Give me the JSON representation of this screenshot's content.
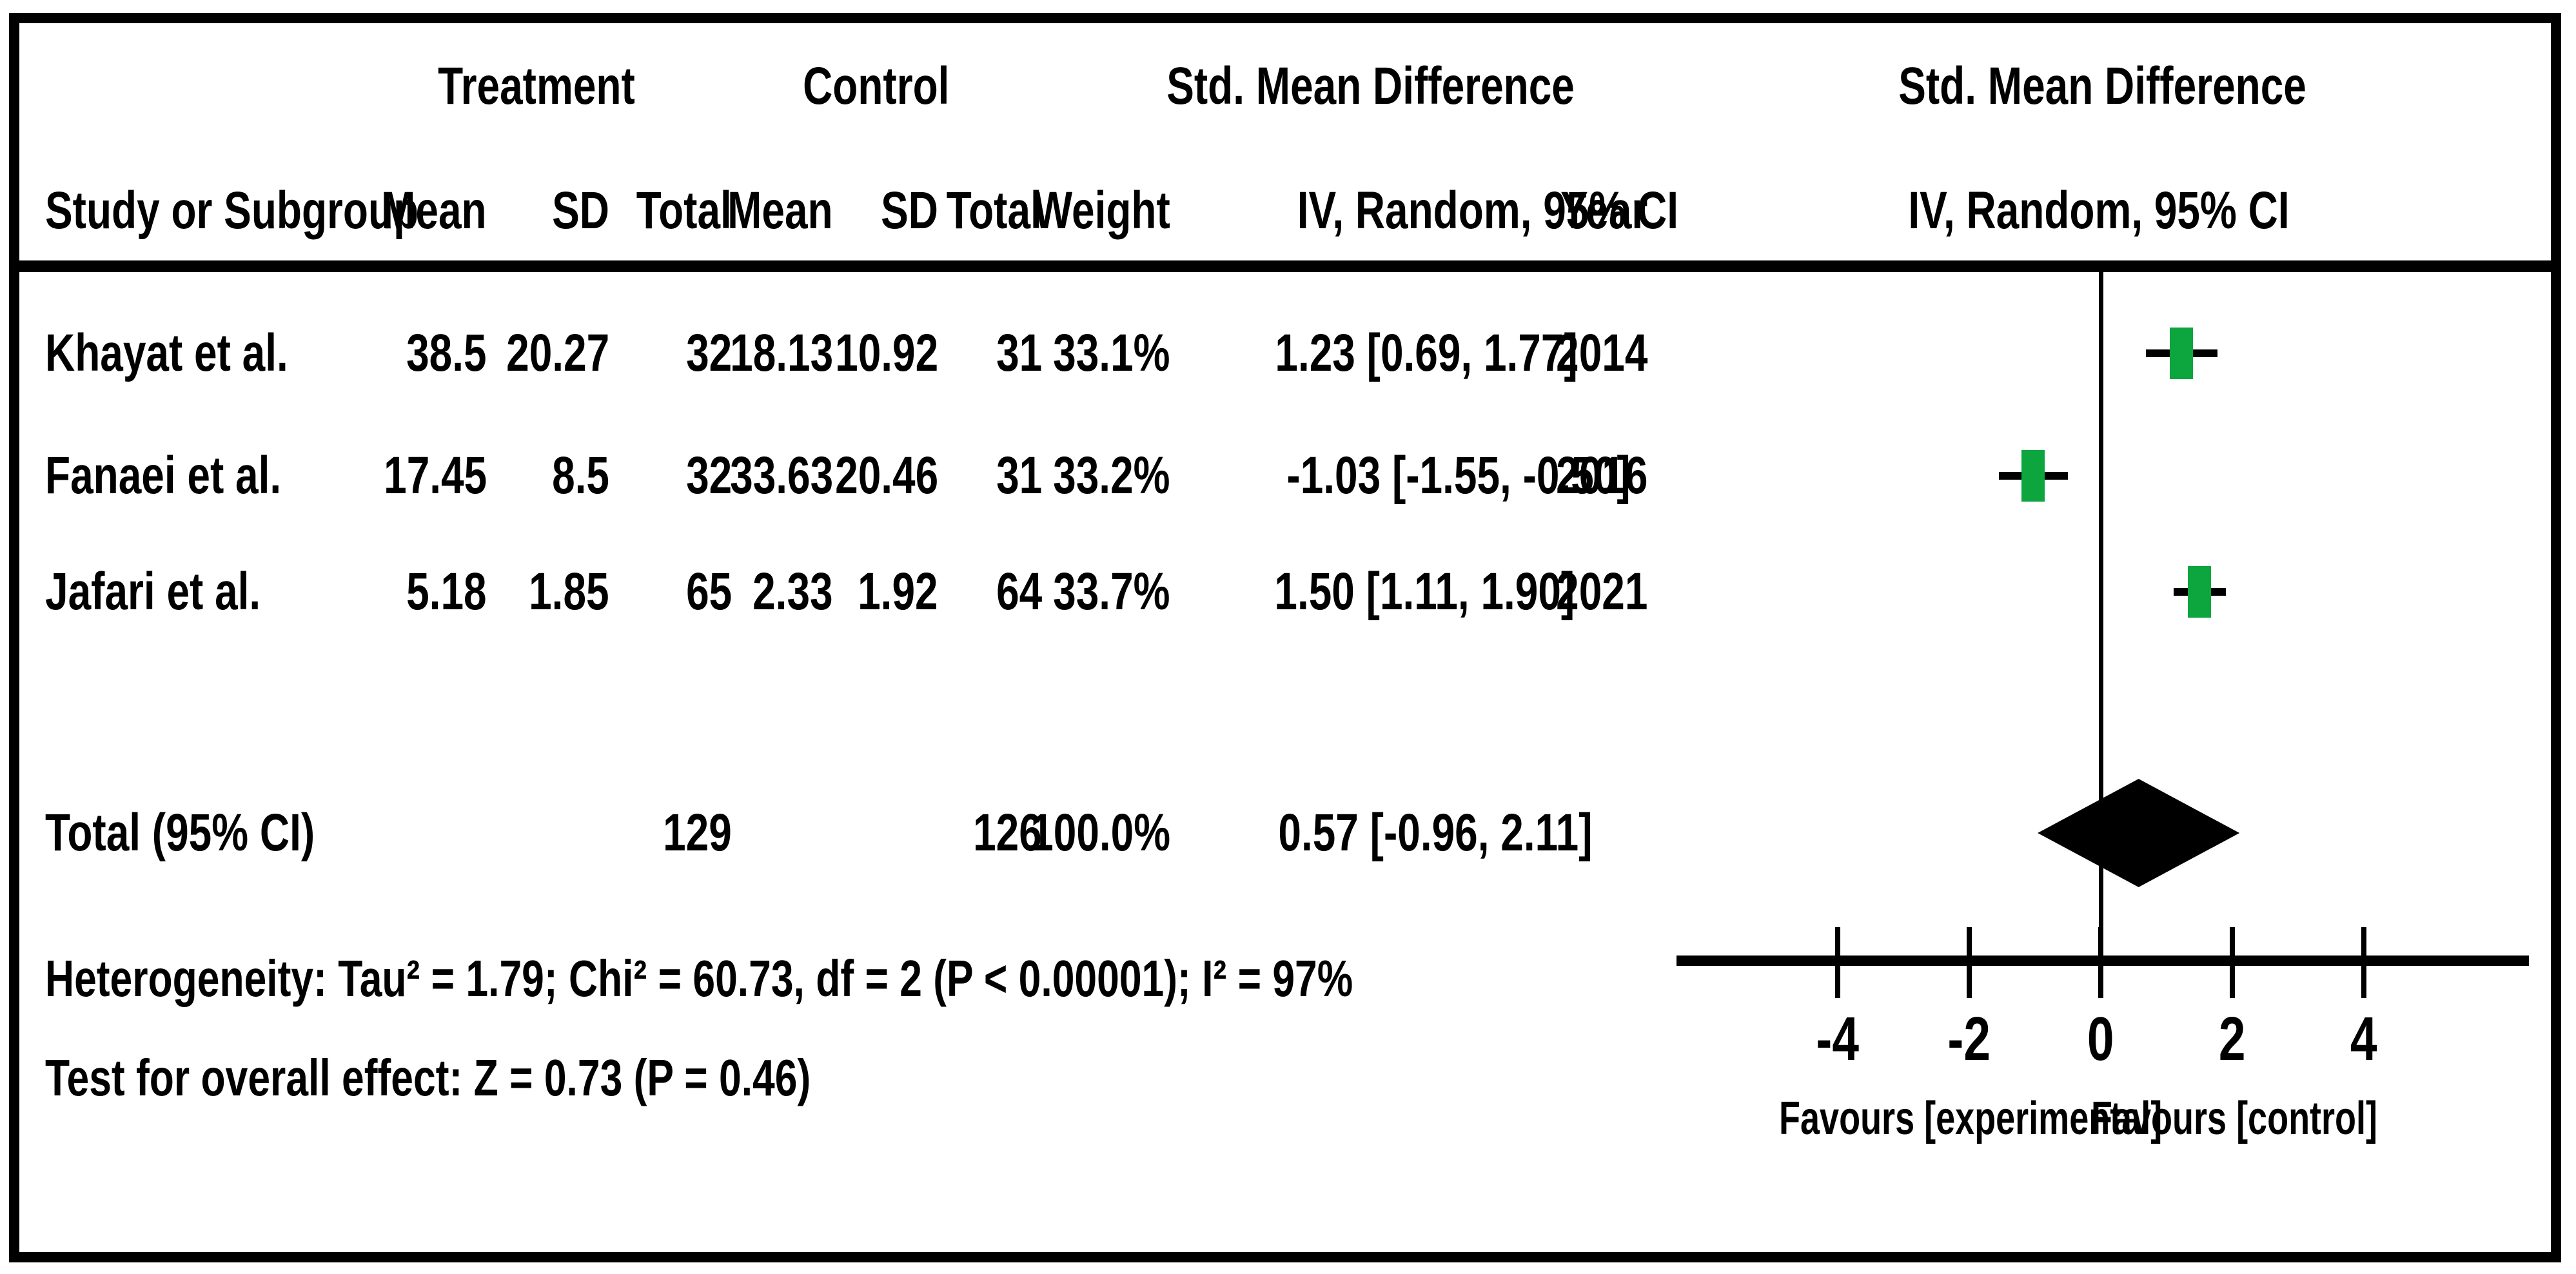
{
  "table": {
    "group_headers": {
      "treatment": "Treatment",
      "control": "Control",
      "smd_left": "Std. Mean Difference",
      "smd_right": "Std. Mean Difference"
    },
    "column_headers": {
      "study": "Study or Subgroup",
      "mean_t": "Mean",
      "sd_t": "SD",
      "total_t": "Total",
      "mean_c": "Mean",
      "sd_c": "SD",
      "total_c": "Total",
      "weight": "Weight",
      "ci": "IV, Random, 95% CI",
      "year": "Year",
      "ci_right": "IV, Random, 95% CI"
    },
    "rows": [
      {
        "study": "Khayat et al.",
        "mean_t": "38.5",
        "sd_t": "20.27",
        "total_t": "32",
        "mean_c": "18.13",
        "sd_c": "10.92",
        "total_c": "31",
        "weight": "33.1%",
        "ci": "1.23 [0.69, 1.77]",
        "year": "2014"
      },
      {
        "study": "Fanaei et al.",
        "mean_t": "17.45",
        "sd_t": "8.5",
        "total_t": "32",
        "mean_c": "33.63",
        "sd_c": "20.46",
        "total_c": "31",
        "weight": "33.2%",
        "ci": "-1.03 [-1.55, -0.50]",
        "year": "2016"
      },
      {
        "study": "Jafari et al.",
        "mean_t": "5.18",
        "sd_t": "1.85",
        "total_t": "65",
        "mean_c": "2.33",
        "sd_c": "1.92",
        "total_c": "64",
        "weight": "33.7%",
        "ci": "1.50 [1.11, 1.90]",
        "year": "2021"
      }
    ],
    "total_row": {
      "label": "Total (95% CI)",
      "total_t": "129",
      "total_c": "126",
      "weight": "100.0%",
      "ci": "0.57 [-0.96, 2.11]"
    },
    "footer": {
      "heterogeneity": "Heterogeneity: Tau² = 1.79; Chi² = 60.73, df = 2 (P < 0.00001); I² = 97%",
      "overall_effect": "Test for overall effect: Z = 0.73 (P = 0.46)"
    }
  },
  "chart_data": {
    "type": "forest",
    "effect_measure": "Std. Mean Difference",
    "method": "IV, Random, 95% CI",
    "studies": [
      {
        "name": "Khayat et al.",
        "mean_t": 38.5,
        "sd_t": 20.27,
        "n_t": 32,
        "mean_c": 18.13,
        "sd_c": 10.92,
        "n_c": 31,
        "weight_pct": 33.1,
        "smd": 1.23,
        "ci_low": 0.69,
        "ci_high": 1.77,
        "year": 2014
      },
      {
        "name": "Fanaei et al.",
        "mean_t": 17.45,
        "sd_t": 8.5,
        "n_t": 32,
        "mean_c": 33.63,
        "sd_c": 20.46,
        "n_c": 31,
        "weight_pct": 33.2,
        "smd": -1.03,
        "ci_low": -1.55,
        "ci_high": -0.5,
        "year": 2016
      },
      {
        "name": "Jafari et al.",
        "mean_t": 5.18,
        "sd_t": 1.85,
        "n_t": 65,
        "mean_c": 2.33,
        "sd_c": 1.92,
        "n_c": 64,
        "weight_pct": 33.7,
        "smd": 1.5,
        "ci_low": 1.11,
        "ci_high": 1.9,
        "year": 2021
      }
    ],
    "total": {
      "n_t": 129,
      "n_c": 126,
      "weight_pct": 100.0,
      "smd": 0.57,
      "ci_low": -0.96,
      "ci_high": 2.11
    },
    "axis": {
      "ticks": [
        -4,
        -2,
        0,
        2,
        4
      ],
      "xlim": [
        -6.4,
        6.5
      ],
      "grid": false
    },
    "favours_left": "Favours [experimental]",
    "favours_right": "Favours [control]",
    "marker_color": "#0CA53E",
    "diamond_color": "#000000",
    "line_color": "#000000"
  }
}
